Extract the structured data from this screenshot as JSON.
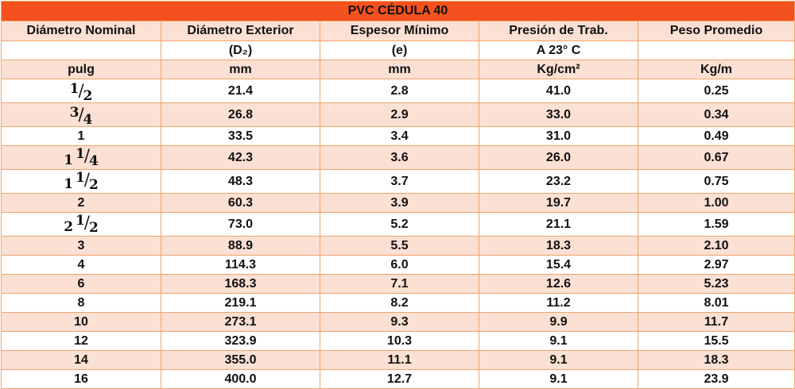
{
  "table": {
    "title": "PVC CÉDULA 40",
    "headers": [
      "Diámetro Nominal",
      "Diámetro Exterior",
      "Espesor Mínimo",
      "Presión de Trab.",
      "Peso Promedio"
    ],
    "subheaders": [
      "",
      "(D₂)",
      "(e)",
      "A 23° C",
      ""
    ],
    "units": [
      "pulg",
      "mm",
      "mm",
      "Kg/cm²",
      "Kg/m"
    ],
    "rows": [
      {
        "nominal": {
          "whole": "",
          "num": "1",
          "den": "2"
        },
        "values": [
          "21.4",
          "2.8",
          "41.0",
          "0.25"
        ]
      },
      {
        "nominal": {
          "whole": "",
          "num": "3",
          "den": "4"
        },
        "values": [
          "26.8",
          "2.9",
          "33.0",
          "0.34"
        ]
      },
      {
        "nominal": {
          "text": "1"
        },
        "values": [
          "33.5",
          "3.4",
          "31.0",
          "0.49"
        ]
      },
      {
        "nominal": {
          "whole": "1",
          "num": "1",
          "den": "4"
        },
        "values": [
          "42.3",
          "3.6",
          "26.0",
          "0.67"
        ]
      },
      {
        "nominal": {
          "whole": "1",
          "num": "1",
          "den": "2"
        },
        "values": [
          "48.3",
          "3.7",
          "23.2",
          "0.75"
        ]
      },
      {
        "nominal": {
          "text": "2"
        },
        "values": [
          "60.3",
          "3.9",
          "19.7",
          "1.00"
        ]
      },
      {
        "nominal": {
          "whole": "2",
          "num": "1",
          "den": "2"
        },
        "values": [
          "73.0",
          "5.2",
          "21.1",
          "1.59"
        ]
      },
      {
        "nominal": {
          "text": "3"
        },
        "values": [
          "88.9",
          "5.5",
          "18.3",
          "2.10"
        ]
      },
      {
        "nominal": {
          "text": "4"
        },
        "values": [
          "114.3",
          "6.0",
          "15.4",
          "2.97"
        ]
      },
      {
        "nominal": {
          "text": "6"
        },
        "values": [
          "168.3",
          "7.1",
          "12.6",
          "5.23"
        ]
      },
      {
        "nominal": {
          "text": "8"
        },
        "values": [
          "219.1",
          "8.2",
          "11.2",
          "8.01"
        ]
      },
      {
        "nominal": {
          "text": "10"
        },
        "values": [
          "273.1",
          "9.3",
          "9.9",
          "11.7"
        ]
      },
      {
        "nominal": {
          "text": "12"
        },
        "values": [
          "323.9",
          "10.3",
          "9.1",
          "15.5"
        ]
      },
      {
        "nominal": {
          "text": "14"
        },
        "values": [
          "355.0",
          "11.1",
          "9.1",
          "18.3"
        ]
      },
      {
        "nominal": {
          "text": "16"
        },
        "values": [
          "400.0",
          "12.7",
          "9.1",
          "23.9"
        ]
      }
    ]
  },
  "colors": {
    "title_bg": "#f4511e",
    "shade_bg": "#fbe0d3",
    "border": "#f2a36b"
  }
}
